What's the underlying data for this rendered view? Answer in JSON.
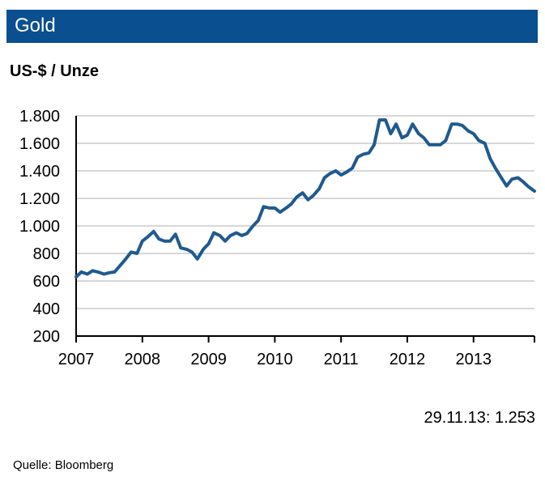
{
  "title": "Gold",
  "unit": "US-$ / Unze",
  "latest_label": "29.11.13:  1.253",
  "source": "Quelle:  Bloomberg",
  "colors": {
    "header": "#0a4f8f",
    "line": "#1f5a8f",
    "grid": "#b0b0b0"
  },
  "chart_data": {
    "type": "line",
    "x_axis": {
      "labels": [
        "2007",
        "2008",
        "2009",
        "2010",
        "2011",
        "2012",
        "2013"
      ],
      "range": [
        2007.0,
        2013.92
      ]
    },
    "y_axis": {
      "range": [
        200,
        1800
      ],
      "ticks": [
        1800,
        1600,
        1400,
        1200,
        1000,
        800,
        600,
        400,
        200
      ],
      "tick_labels": [
        "1.800",
        "1.600",
        "1.400",
        "1.200",
        "1.000",
        "800",
        "600",
        "400",
        "200"
      ]
    },
    "grid": true,
    "series": [
      {
        "points": [
          [
            2007.0,
            630
          ],
          [
            2007.08,
            665
          ],
          [
            2007.17,
            650
          ],
          [
            2007.25,
            675
          ],
          [
            2007.33,
            665
          ],
          [
            2007.42,
            650
          ],
          [
            2007.5,
            660
          ],
          [
            2007.58,
            665
          ],
          [
            2007.67,
            715
          ],
          [
            2007.75,
            760
          ],
          [
            2007.83,
            810
          ],
          [
            2007.92,
            800
          ],
          [
            2008.0,
            890
          ],
          [
            2008.08,
            920
          ],
          [
            2008.17,
            960
          ],
          [
            2008.25,
            905
          ],
          [
            2008.33,
            890
          ],
          [
            2008.42,
            890
          ],
          [
            2008.5,
            940
          ],
          [
            2008.58,
            840
          ],
          [
            2008.67,
            830
          ],
          [
            2008.75,
            810
          ],
          [
            2008.83,
            760
          ],
          [
            2008.92,
            830
          ],
          [
            2009.0,
            870
          ],
          [
            2009.08,
            950
          ],
          [
            2009.17,
            930
          ],
          [
            2009.25,
            890
          ],
          [
            2009.33,
            930
          ],
          [
            2009.42,
            950
          ],
          [
            2009.5,
            930
          ],
          [
            2009.58,
            945
          ],
          [
            2009.67,
            1000
          ],
          [
            2009.75,
            1040
          ],
          [
            2009.83,
            1140
          ],
          [
            2009.92,
            1130
          ],
          [
            2010.0,
            1130
          ],
          [
            2010.08,
            1100
          ],
          [
            2010.17,
            1130
          ],
          [
            2010.25,
            1160
          ],
          [
            2010.33,
            1210
          ],
          [
            2010.42,
            1240
          ],
          [
            2010.5,
            1190
          ],
          [
            2010.58,
            1220
          ],
          [
            2010.67,
            1270
          ],
          [
            2010.75,
            1350
          ],
          [
            2010.83,
            1380
          ],
          [
            2010.92,
            1400
          ],
          [
            2011.0,
            1370
          ],
          [
            2011.08,
            1390
          ],
          [
            2011.17,
            1420
          ],
          [
            2011.25,
            1500
          ],
          [
            2011.33,
            1520
          ],
          [
            2011.42,
            1530
          ],
          [
            2011.5,
            1590
          ],
          [
            2011.58,
            1770
          ],
          [
            2011.67,
            1770
          ],
          [
            2011.75,
            1670
          ],
          [
            2011.83,
            1740
          ],
          [
            2011.92,
            1640
          ],
          [
            2012.0,
            1660
          ],
          [
            2012.08,
            1740
          ],
          [
            2012.17,
            1670
          ],
          [
            2012.25,
            1640
          ],
          [
            2012.33,
            1590
          ],
          [
            2012.42,
            1590
          ],
          [
            2012.5,
            1590
          ],
          [
            2012.58,
            1620
          ],
          [
            2012.67,
            1740
          ],
          [
            2012.75,
            1740
          ],
          [
            2012.83,
            1730
          ],
          [
            2012.92,
            1690
          ],
          [
            2013.0,
            1670
          ],
          [
            2013.08,
            1620
          ],
          [
            2013.17,
            1600
          ],
          [
            2013.25,
            1490
          ],
          [
            2013.33,
            1420
          ],
          [
            2013.42,
            1350
          ],
          [
            2013.5,
            1290
          ],
          [
            2013.58,
            1340
          ],
          [
            2013.67,
            1350
          ],
          [
            2013.75,
            1320
          ],
          [
            2013.83,
            1285
          ],
          [
            2013.92,
            1253
          ]
        ]
      }
    ]
  }
}
